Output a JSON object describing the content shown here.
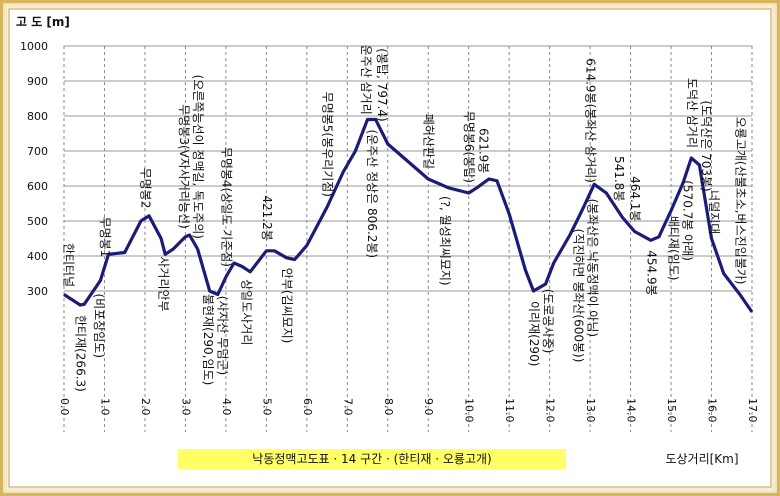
{
  "chart_data": {
    "type": "line",
    "y_label": "고 도 [m]",
    "x_label": "도상거리[Km]",
    "title": "낙동정맥고도표 · 14 구간 · (한티재 · 오룡고개)",
    "color": "#1c1c78",
    "grid": true,
    "ylim": [
      200,
      1000
    ],
    "yticks": [
      300,
      400,
      500,
      600,
      700,
      800,
      900,
      1000
    ],
    "xlim": [
      0,
      17
    ],
    "xticks": [
      {
        "value": 0,
        "label": "0.0"
      },
      {
        "value": 1,
        "label": "1.0"
      },
      {
        "value": 2,
        "label": "2.0"
      },
      {
        "value": 3,
        "label": "3.0"
      },
      {
        "value": 4,
        "label": "4.0"
      },
      {
        "value": 5,
        "label": "5.0"
      },
      {
        "value": 6,
        "label": "6.0"
      },
      {
        "value": 7,
        "label": "7.0"
      },
      {
        "value": 8,
        "label": "8.0"
      },
      {
        "value": 9,
        "label": "9.0"
      },
      {
        "value": 10,
        "label": "10.0"
      },
      {
        "value": 11,
        "label": "11.0"
      },
      {
        "value": 12,
        "label": "12.0"
      },
      {
        "value": 13,
        "label": "13.0"
      },
      {
        "value": 14,
        "label": "14.0"
      },
      {
        "value": 15,
        "label": "15.0"
      },
      {
        "value": 16,
        "label": "16.0"
      },
      {
        "value": 17,
        "label": "17.0"
      }
    ],
    "x": [
      0.0,
      0.4,
      0.5,
      0.9,
      1.1,
      1.5,
      1.9,
      2.1,
      2.4,
      2.5,
      2.7,
      3.0,
      3.1,
      3.3,
      3.6,
      3.8,
      4.0,
      4.2,
      4.4,
      4.6,
      5.0,
      5.2,
      5.5,
      5.7,
      6.0,
      6.5,
      6.9,
      7.2,
      7.5,
      7.7,
      8.0,
      8.5,
      9.0,
      9.5,
      10.0,
      10.2,
      10.5,
      10.7,
      11.0,
      11.4,
      11.6,
      11.9,
      12.1,
      12.5,
      12.8,
      13.1,
      13.4,
      13.8,
      14.1,
      14.5,
      14.7,
      15.0,
      15.3,
      15.5,
      15.7,
      16.0,
      16.3,
      16.7,
      17.0
    ],
    "values": [
      290,
      260,
      262,
      330,
      405,
      410,
      500,
      515,
      450,
      405,
      420,
      455,
      460,
      420,
      300,
      290,
      340,
      380,
      370,
      355,
      415,
      415,
      395,
      390,
      430,
      540,
      640,
      700,
      790,
      790,
      720,
      670,
      620,
      595,
      580,
      595,
      620,
      615,
      520,
      360,
      300,
      320,
      380,
      460,
      530,
      605,
      580,
      510,
      470,
      445,
      455,
      530,
      610,
      680,
      660,
      450,
      350,
      290,
      240
    ],
    "annotations": [
      {
        "text": "한티터널",
        "x": 0.1
      },
      {
        "text": "한티재(266.3)",
        "x": 0.4
      },
      {
        "text": "(비포장임도)",
        "x": 0.85
      },
      {
        "text": "무명봉1",
        "x": 1.0
      },
      {
        "text": "무명봉2",
        "x": 2.0
      },
      {
        "text": "사거리안부",
        "x": 2.45
      },
      {
        "text": "무명봉3(V자사거리능선)",
        "x": 2.95
      },
      {
        "text": "(오른쪽능선이 정맥길, 독도주의)",
        "x": 3.3
      },
      {
        "text": "불현재(290,임도)",
        "x": 3.55
      },
      {
        "text": "(사자산 무덤군)",
        "x": 3.9
      },
      {
        "text": "무명봉4(상일도 기준점)",
        "x": 4.0
      },
      {
        "text": "상일도사거리",
        "x": 4.5
      },
      {
        "text": "421.2봉",
        "x": 5.0
      },
      {
        "text": "안부(김씨묘지)",
        "x": 5.5
      },
      {
        "text": "무명봉5(봉우리기점)",
        "x": 6.5
      },
      {
        "text": "운주산 삼거리",
        "x": 7.45
      },
      {
        "text": "(봉탑, 797.4)",
        "x": 7.85
      },
      {
        "text": "(운주산 정상은 806.2봉)",
        "x": 7.6
      },
      {
        "text": "폐허산판길",
        "x": 9.0
      },
      {
        "text": "(?, 월성최씨묘지)",
        "x": 9.4
      },
      {
        "text": "무명봉6(봉탑)",
        "x": 10.0
      },
      {
        "text": "621.9봉",
        "x": 10.35
      },
      {
        "text": "이리재(290)",
        "x": 11.6
      },
      {
        "text": "(도로공사중)",
        "x": 11.95
      },
      {
        "text": "(직진하면 봉좌산(600봉))",
        "x": 12.7
      },
      {
        "text": "(봉좌산은 낙동정맥이 아님)",
        "x": 13.05
      },
      {
        "text": "614.9봉(봉좌산 삼거리)",
        "x": 13.0
      },
      {
        "text": "541.8봉",
        "x": 13.7
      },
      {
        "text": "464.1봉",
        "x": 14.1
      },
      {
        "text": "454.9봉",
        "x": 14.5
      },
      {
        "text": "배티재(임도)",
        "x": 15.05
      },
      {
        "text": "(570.7봉 아래)",
        "x": 15.4
      },
      {
        "text": "도덕산 삼거리",
        "x": 15.5
      },
      {
        "text": "(도덕산은 703봉)",
        "x": 15.85
      },
      {
        "text": "너덜지대",
        "x": 16.05
      },
      {
        "text": "오룡고개(산불초소,버스진입불가)",
        "x": 16.7
      }
    ]
  }
}
